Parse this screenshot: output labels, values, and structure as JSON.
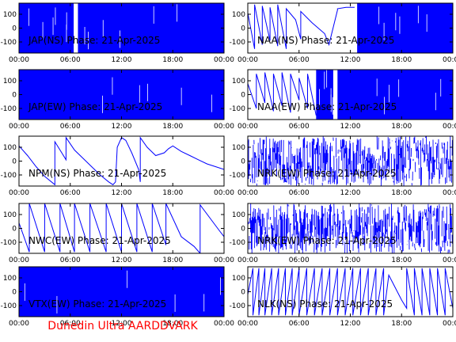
{
  "footer": {
    "text": "Dunedin Ultra AARDDVARK"
  },
  "colors": {
    "trace": "#0000ff",
    "axis": "#000000",
    "footer": "#ff0000",
    "background": "#ffffff"
  },
  "chart_data": [
    {
      "type": "line",
      "title": "JAP(NS) Phase: 21-Apr-2025",
      "x_ticks": [
        "00:00",
        "06:00",
        "12:00",
        "18:00",
        "00:00"
      ],
      "x_range_hours": [
        0,
        24
      ],
      "y_ticks": [
        100,
        0,
        -100
      ],
      "ylim": [
        -180,
        180
      ],
      "pattern": "dense",
      "dense_ranges": [
        [
          0,
          6.4
        ],
        [
          6.9,
          24
        ]
      ]
    },
    {
      "type": "line",
      "title": "NAA(NS) Phase: 21-Apr-2025",
      "x_ticks": [
        "00:00",
        "06:00",
        "12:00",
        "18:00",
        "00:00"
      ],
      "x_range_hours": [
        0,
        24
      ],
      "y_ticks": [
        100,
        0,
        -100
      ],
      "ylim": [
        -180,
        180
      ],
      "pattern": "sawtooth_then_dense",
      "points": [
        [
          0,
          110
        ],
        [
          0.8,
          -150
        ],
        [
          0.8,
          170
        ],
        [
          1.7,
          -120
        ],
        [
          1.7,
          160
        ],
        [
          2.6,
          -90
        ],
        [
          2.6,
          150
        ],
        [
          3.5,
          -130
        ],
        [
          3.5,
          170
        ],
        [
          4.5,
          -150
        ],
        [
          4.5,
          140
        ],
        [
          5.6,
          60
        ],
        [
          6.2,
          -80
        ],
        [
          6.2,
          120
        ],
        [
          7.5,
          40
        ],
        [
          9.0,
          -40
        ],
        [
          9.5,
          -120
        ],
        [
          10.5,
          130
        ],
        [
          10.5,
          140
        ],
        [
          11.5,
          150
        ],
        [
          12.5,
          150
        ]
      ],
      "dense_ranges": [
        [
          12.8,
          24
        ]
      ]
    },
    {
      "type": "line",
      "title": "JAP(EW) Phase: 21-Apr-2025",
      "x_ticks": [
        "00:00",
        "06:00",
        "12:00",
        "18:00",
        "00:00"
      ],
      "x_range_hours": [
        0,
        24
      ],
      "y_ticks": [
        100,
        0,
        -100
      ],
      "ylim": [
        -180,
        180
      ],
      "pattern": "dense",
      "dense_ranges": [
        [
          0,
          24
        ]
      ]
    },
    {
      "type": "line",
      "title": "NAA(EW) Phase: 21-Apr-2025",
      "x_ticks": [
        "00:00",
        "06:00",
        "12:00",
        "18:00",
        "00:00"
      ],
      "x_range_hours": [
        0,
        24
      ],
      "y_ticks": [
        100,
        0,
        -100
      ],
      "ylim": [
        -180,
        180
      ],
      "pattern": "sawtooth_then_dense",
      "points": [
        [
          0,
          80
        ],
        [
          1.0,
          -100
        ],
        [
          1.0,
          150
        ],
        [
          2.0,
          -60
        ],
        [
          2.0,
          160
        ],
        [
          3.0,
          -120
        ],
        [
          3.0,
          150
        ],
        [
          4.0,
          -80
        ],
        [
          4.0,
          160
        ],
        [
          5.0,
          -130
        ],
        [
          5.0,
          150
        ],
        [
          6.0,
          -40
        ],
        [
          6.0,
          120
        ],
        [
          7.0,
          -100
        ],
        [
          7.0,
          150
        ],
        [
          8.0,
          -150
        ]
      ],
      "dense_ranges": [
        [
          8.0,
          10.0
        ],
        [
          10.5,
          24
        ]
      ]
    },
    {
      "type": "line",
      "title": "NPM(NS) Phase: 21-Apr-2025",
      "x_ticks": [
        "00:00",
        "06:00",
        "12:00",
        "18:00",
        "00:00"
      ],
      "x_range_hours": [
        0,
        24
      ],
      "y_ticks": [
        100,
        0,
        -100
      ],
      "ylim": [
        -180,
        180
      ],
      "pattern": "line",
      "points": [
        [
          0,
          110
        ],
        [
          1.0,
          40
        ],
        [
          2.0,
          -40
        ],
        [
          3.0,
          -110
        ],
        [
          4.2,
          -170
        ],
        [
          4.2,
          140
        ],
        [
          5.0,
          60
        ],
        [
          5.5,
          10
        ],
        [
          5.5,
          170
        ],
        [
          6.5,
          80
        ],
        [
          7.5,
          20
        ],
        [
          8.5,
          -40
        ],
        [
          9.5,
          -100
        ],
        [
          10.5,
          -150
        ],
        [
          11.0,
          -170
        ],
        [
          11.3,
          -150
        ],
        [
          11.5,
          100
        ],
        [
          12.0,
          170
        ],
        [
          12.5,
          150
        ],
        [
          13.2,
          60
        ],
        [
          14.0,
          -60
        ],
        [
          14.2,
          -150
        ],
        [
          14.2,
          170
        ],
        [
          15.0,
          100
        ],
        [
          16.0,
          40
        ],
        [
          17.0,
          60
        ],
        [
          17.5,
          90
        ],
        [
          18.0,
          110
        ],
        [
          19.0,
          70
        ],
        [
          20.0,
          40
        ],
        [
          21.0,
          10
        ],
        [
          22.0,
          -20
        ],
        [
          23.0,
          -40
        ],
        [
          24.0,
          -60
        ]
      ]
    },
    {
      "type": "line",
      "title": "NRK(EW) Phase: 21-Apr-2025",
      "x_ticks": [
        "00:00",
        "06:00",
        "12:00",
        "18:00",
        "00:00"
      ],
      "x_range_hours": [
        0,
        24
      ],
      "y_ticks": [
        100,
        0,
        -100
      ],
      "ylim": [
        -180,
        180
      ],
      "pattern": "spiky"
    },
    {
      "type": "line",
      "title": "NWC(EW) Phase: 21-Apr-2025",
      "x_ticks": [
        "00:00",
        "06:00",
        "12:00",
        "18:00",
        "00:00"
      ],
      "x_range_hours": [
        0,
        24
      ],
      "y_ticks": [
        100,
        0,
        -100
      ],
      "ylim": [
        -180,
        180
      ],
      "pattern": "sawtooth",
      "points": [
        [
          0,
          40
        ],
        [
          1.2,
          -170
        ],
        [
          1.2,
          180
        ],
        [
          3.0,
          -170
        ],
        [
          3.0,
          180
        ],
        [
          4.8,
          -170
        ],
        [
          4.8,
          180
        ],
        [
          6.5,
          -170
        ],
        [
          6.5,
          180
        ],
        [
          8.3,
          -170
        ],
        [
          8.3,
          180
        ],
        [
          10.2,
          -170
        ],
        [
          10.2,
          180
        ],
        [
          12.0,
          -170
        ],
        [
          12.0,
          180
        ],
        [
          13.8,
          -170
        ],
        [
          13.8,
          180
        ],
        [
          15.6,
          -170
        ],
        [
          15.6,
          180
        ],
        [
          17.2,
          -120
        ],
        [
          17.2,
          180
        ],
        [
          19.0,
          -60
        ],
        [
          20.5,
          -130
        ],
        [
          21.2,
          -180
        ],
        [
          21.2,
          170
        ],
        [
          23.5,
          -20
        ],
        [
          24,
          -60
        ]
      ]
    },
    {
      "type": "line",
      "title": "NRK(EW) Phase: 21-Apr-2025",
      "x_ticks": [
        "00:00",
        "06:00",
        "12:00",
        "18:00",
        "00:00"
      ],
      "x_range_hours": [
        0,
        24
      ],
      "y_ticks": [
        100,
        0,
        -100
      ],
      "ylim": [
        -180,
        180
      ],
      "pattern": "spiky"
    },
    {
      "type": "line",
      "title": "VTX(EW) Phase: 21-Apr-2025",
      "x_ticks": [
        "00:00",
        "06:00",
        "12:00",
        "18:00",
        "00:00"
      ],
      "x_range_hours": [
        0,
        24
      ],
      "y_ticks": [
        100,
        0,
        -100
      ],
      "ylim": [
        -180,
        180
      ],
      "pattern": "dense",
      "dense_ranges": [
        [
          0,
          24
        ]
      ]
    },
    {
      "type": "line",
      "title": "NLK(NS) Phase: 21-Apr-2025",
      "x_ticks": [
        "00:00",
        "06:00",
        "12:00",
        "18:00",
        "00:00"
      ],
      "x_range_hours": [
        0,
        24
      ],
      "y_ticks": [
        100,
        0,
        -100
      ],
      "ylim": [
        -180,
        180
      ],
      "pattern": "sawtooth",
      "points": [
        [
          0,
          -20
        ],
        [
          0.6,
          170
        ],
        [
          0.6,
          -170
        ],
        [
          1.3,
          170
        ],
        [
          1.3,
          -170
        ],
        [
          2.0,
          170
        ],
        [
          2.0,
          -170
        ],
        [
          2.8,
          170
        ],
        [
          2.8,
          -170
        ],
        [
          3.6,
          170
        ],
        [
          3.6,
          -170
        ],
        [
          4.4,
          170
        ],
        [
          4.4,
          -170
        ],
        [
          5.2,
          170
        ],
        [
          5.2,
          -170
        ],
        [
          6.0,
          170
        ],
        [
          6.0,
          -170
        ],
        [
          6.9,
          170
        ],
        [
          6.9,
          -170
        ],
        [
          7.8,
          170
        ],
        [
          7.8,
          -170
        ],
        [
          8.7,
          170
        ],
        [
          8.7,
          -170
        ],
        [
          9.6,
          170
        ],
        [
          9.6,
          -170
        ],
        [
          10.5,
          170
        ],
        [
          10.5,
          -170
        ],
        [
          11.4,
          170
        ],
        [
          11.4,
          -170
        ],
        [
          12.3,
          170
        ],
        [
          12.3,
          -170
        ],
        [
          13.2,
          170
        ],
        [
          13.2,
          -170
        ],
        [
          14.1,
          170
        ],
        [
          14.1,
          -170
        ],
        [
          15.0,
          170
        ],
        [
          15.0,
          -170
        ],
        [
          15.9,
          170
        ],
        [
          15.9,
          -170
        ],
        [
          16.5,
          120
        ],
        [
          17.0,
          60
        ],
        [
          17.5,
          0
        ],
        [
          18.0,
          -60
        ],
        [
          18.6,
          -120
        ],
        [
          18.6,
          170
        ],
        [
          19.5,
          -170
        ],
        [
          19.5,
          170
        ],
        [
          20.4,
          -170
        ],
        [
          20.4,
          170
        ],
        [
          21.3,
          -170
        ],
        [
          21.3,
          170
        ],
        [
          22.2,
          -170
        ],
        [
          22.2,
          170
        ],
        [
          23.1,
          -170
        ],
        [
          23.1,
          170
        ],
        [
          24,
          -120
        ]
      ]
    }
  ]
}
